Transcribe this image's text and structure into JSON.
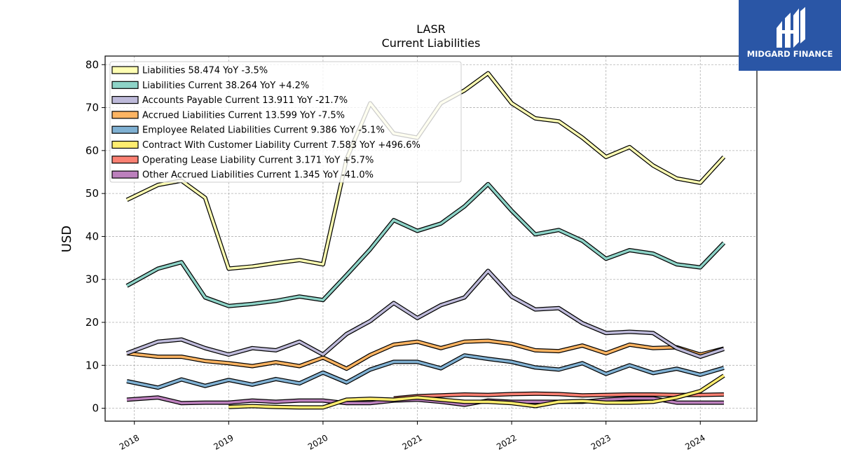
{
  "chart_data": {
    "type": "line",
    "title": "LASR",
    "subtitle": "Current  Liabilities",
    "ylabel": "USD",
    "xlabel": "",
    "ylim": [
      -3,
      82
    ],
    "xlim": [
      2017.69,
      2024.6
    ],
    "yticks": [
      0,
      10,
      20,
      30,
      40,
      50,
      60,
      70,
      80
    ],
    "xticks": [
      "2018",
      "2019",
      "2020",
      "2021",
      "2022",
      "2023",
      "2024"
    ],
    "grid": true,
    "legend_position": "top-left",
    "x": [
      2017.92,
      2018.25,
      2018.5,
      2018.75,
      2019.0,
      2019.25,
      2019.5,
      2019.75,
      2020.0,
      2020.25,
      2020.5,
      2020.75,
      2021.0,
      2021.25,
      2021.5,
      2021.75,
      2022.0,
      2022.25,
      2022.5,
      2022.75,
      2023.0,
      2023.25,
      2023.5,
      2023.75,
      2024.0,
      2024.25
    ],
    "series": [
      {
        "name": "Liabilities",
        "legend": "Liabilities  58.474 YoY -3.5%",
        "color": "#ffffb3",
        "values": [
          48.5,
          52.0,
          53.0,
          49.0,
          32.5,
          33.0,
          33.8,
          34.5,
          33.5,
          58.0,
          71.0,
          64.0,
          63.0,
          71.0,
          74.0,
          78.0,
          71.0,
          67.5,
          66.8,
          63.0,
          58.5,
          60.8,
          56.5,
          53.5,
          52.5,
          58.5
        ]
      },
      {
        "name": "Liabilities Current",
        "legend": "Liabilities Current  38.264 YoY +4.2%",
        "color": "#8dd3c7",
        "values": [
          28.5,
          32.5,
          34.0,
          25.8,
          23.8,
          24.3,
          25.0,
          26.0,
          25.2,
          31.0,
          37.0,
          43.8,
          41.3,
          43.0,
          47.0,
          52.2,
          46.0,
          40.5,
          41.5,
          39.0,
          34.8,
          36.8,
          36.0,
          33.5,
          32.8,
          38.5
        ]
      },
      {
        "name": "Accounts Payable Current",
        "legend": "Accounts Payable Current  13.911 YoY -21.7%",
        "color": "#bebada",
        "values": [
          12.8,
          15.5,
          16.0,
          14.0,
          12.5,
          14.0,
          13.5,
          15.5,
          12.5,
          17.3,
          20.3,
          24.5,
          21.0,
          24.0,
          25.8,
          32.0,
          26.0,
          23.0,
          23.3,
          19.8,
          17.5,
          17.8,
          17.5,
          14.0,
          12.0,
          13.8
        ]
      },
      {
        "name": "Accrued Liabilities Current",
        "legend": "Accrued Liabilities Current  13.599 YoY -7.5%",
        "color": "#fdb462",
        "values": [
          12.8,
          12.0,
          12.0,
          11.0,
          10.5,
          9.8,
          10.7,
          9.8,
          11.8,
          9.2,
          12.4,
          14.8,
          15.5,
          14.0,
          15.5,
          15.7,
          15.0,
          13.5,
          13.3,
          14.6,
          12.8,
          14.8,
          14.0,
          14.2,
          12.5,
          13.9
        ]
      },
      {
        "name": "Employee Related Liabilities Current",
        "legend": "Employee Related Liabilities Current  9.386 YoY -5.1%",
        "color": "#80b1d3",
        "values": [
          6.3,
          4.8,
          6.7,
          5.2,
          6.6,
          5.5,
          6.8,
          5.8,
          8.3,
          6.0,
          9.0,
          10.8,
          10.8,
          9.3,
          12.3,
          11.5,
          10.8,
          9.5,
          9.0,
          10.5,
          8.0,
          10.0,
          8.2,
          9.2,
          7.8,
          9.4
        ]
      },
      {
        "name": "Contract With Customer Liability Current",
        "legend": "Contract With Customer Liability Current  7.583 YoY +496.6%",
        "color": "#ffed6f",
        "values": [
          null,
          null,
          null,
          null,
          0.3,
          0.5,
          0.3,
          0.2,
          0.2,
          2.0,
          2.2,
          2.0,
          2.5,
          2.0,
          1.5,
          1.5,
          1.2,
          0.5,
          1.5,
          1.7,
          1.3,
          1.3,
          1.5,
          2.5,
          4.0,
          7.6
        ]
      },
      {
        "name": "Operating Lease Liability Current",
        "legend": "Operating Lease Liability Current  3.171 YoY +5.7%",
        "color": "#fb8072",
        "values": [
          null,
          null,
          null,
          null,
          null,
          null,
          null,
          null,
          null,
          null,
          null,
          2.3,
          2.8,
          3.0,
          3.2,
          3.1,
          3.3,
          3.4,
          3.3,
          3.0,
          3.1,
          3.2,
          3.2,
          3.1,
          3.1,
          3.2
        ]
      },
      {
        "name": "Other Accrued Liabilities Current",
        "legend": "Other Accrued Liabilities Current  1.345 YoY -41.0%",
        "color": "#bc80bd",
        "values": [
          2.0,
          2.5,
          1.2,
          1.3,
          1.3,
          1.8,
          1.5,
          1.8,
          1.8,
          1.2,
          1.2,
          1.8,
          2.0,
          1.5,
          0.8,
          1.8,
          1.5,
          1.5,
          1.5,
          1.5,
          2.0,
          2.3,
          2.3,
          1.3,
          1.3,
          1.3
        ]
      }
    ]
  },
  "logo": {
    "text": "MIDGARD FINANCE",
    "bg_color": "#2a56a6"
  }
}
